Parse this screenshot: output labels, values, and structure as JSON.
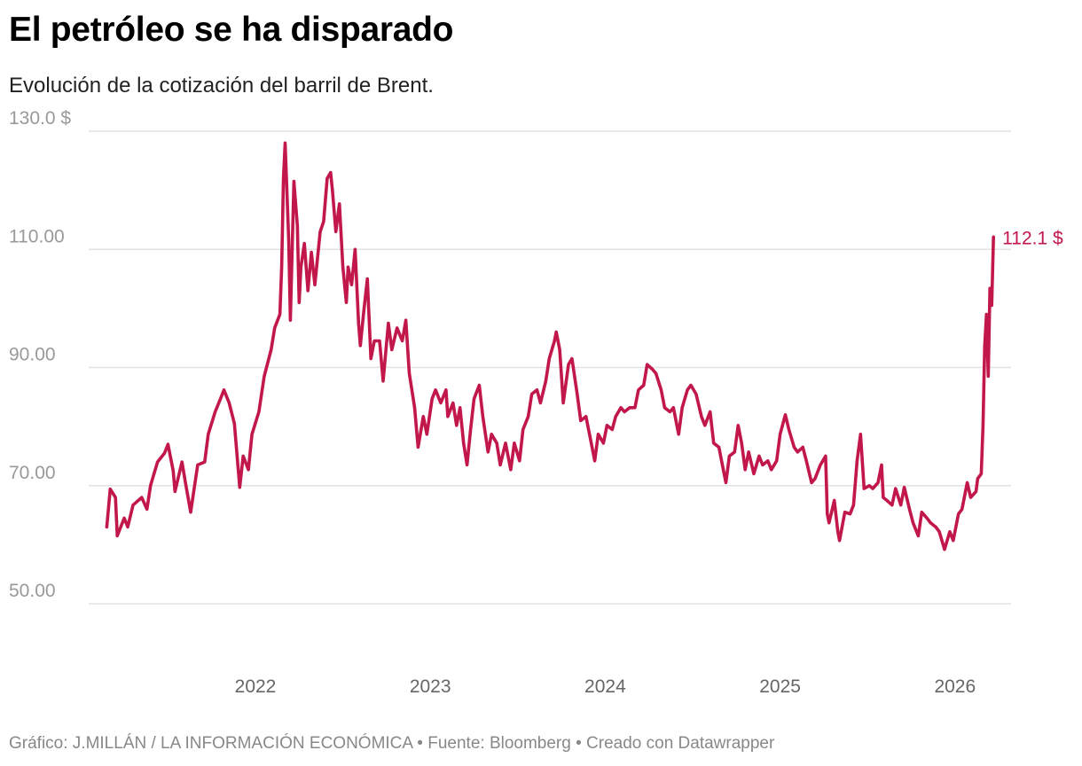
{
  "title": "El petróleo se ha disparado",
  "subtitle": "Evolución de la cotización del barril de Brent.",
  "footer": "Gráfico: J.MILLÁN / LA INFORMACIÓN ECONÓMICA • Fuente: Bloomberg • Creado con Datawrapper",
  "colors": {
    "line": "#c2174a",
    "grid": "#e3e3e3"
  },
  "chart_data": {
    "type": "line",
    "title": "El petróleo se ha disparado",
    "subtitle": "Evolución de la cotización del barril de Brent.",
    "ylim": [
      50,
      130
    ],
    "xlim": [
      2021.15,
      2026.22
    ],
    "grid": true,
    "y_ticks": [
      130,
      110,
      90,
      70,
      50
    ],
    "y_tick_labels": [
      "130.0 $",
      "110.00",
      "90.00",
      "70.00",
      "50.00"
    ],
    "x_ticks": [
      2022,
      2023,
      2024,
      2025,
      2026
    ],
    "x_tick_labels": [
      "2022",
      "2023",
      "2024",
      "2025",
      "2026"
    ],
    "end_label": "112.1 $",
    "x": [
      2021.15,
      2021.17,
      2021.2,
      2021.21,
      2021.25,
      2021.27,
      2021.3,
      2021.35,
      2021.38,
      2021.4,
      2021.44,
      2021.48,
      2021.5,
      2021.53,
      2021.54,
      2021.58,
      2021.6,
      2021.63,
      2021.67,
      2021.71,
      2021.73,
      2021.77,
      2021.8,
      2021.82,
      2021.85,
      2021.88,
      2021.91,
      2021.93,
      2021.96,
      2021.98,
      2022.02,
      2022.05,
      2022.09,
      2022.11,
      2022.14,
      2022.15,
      2022.16,
      2022.17,
      2022.19,
      2022.2,
      2022.22,
      2022.24,
      2022.25,
      2022.26,
      2022.28,
      2022.3,
      2022.32,
      2022.34,
      2022.37,
      2022.39,
      2022.41,
      2022.43,
      2022.44,
      2022.46,
      2022.48,
      2022.5,
      2022.52,
      2022.53,
      2022.55,
      2022.57,
      2022.59,
      2022.6,
      2022.62,
      2022.64,
      2022.66,
      2022.68,
      2022.71,
      2022.73,
      2022.76,
      2022.78,
      2022.81,
      2022.84,
      2022.86,
      2022.88,
      2022.91,
      2022.93,
      2022.96,
      2022.98,
      2023.01,
      2023.03,
      2023.06,
      2023.09,
      2023.1,
      2023.13,
      2023.15,
      2023.17,
      2023.19,
      2023.21,
      2023.23,
      2023.25,
      2023.28,
      2023.3,
      2023.33,
      2023.35,
      2023.38,
      2023.4,
      2023.43,
      2023.46,
      2023.48,
      2023.51,
      2023.53,
      2023.56,
      2023.58,
      2023.61,
      2023.63,
      2023.66,
      2023.68,
      2023.71,
      2023.72,
      2023.74,
      2023.76,
      2023.79,
      2023.81,
      2023.84,
      2023.86,
      2023.89,
      2023.91,
      2023.94,
      2023.96,
      2023.99,
      2024.01,
      2024.04,
      2024.06,
      2024.09,
      2024.11,
      2024.14,
      2024.17,
      2024.19,
      2024.22,
      2024.24,
      2024.27,
      2024.29,
      2024.32,
      2024.34,
      2024.37,
      2024.39,
      2024.42,
      2024.44,
      2024.47,
      2024.49,
      2024.52,
      2024.55,
      2024.57,
      2024.6,
      2024.62,
      2024.65,
      2024.67,
      2024.69,
      2024.71,
      2024.74,
      2024.76,
      2024.78,
      2024.8,
      2024.82,
      2024.85,
      2024.88,
      2024.9,
      2024.93,
      2024.95,
      2024.98,
      2025.0,
      2025.03,
      2025.05,
      2025.08,
      2025.1,
      2025.13,
      2025.15,
      2025.18,
      2025.2,
      2025.23,
      2025.26,
      2025.27,
      2025.28,
      2025.31,
      2025.33,
      2025.34,
      2025.37,
      2025.4,
      2025.42,
      2025.44,
      2025.46,
      2025.48,
      2025.51,
      2025.53,
      2025.56,
      2025.58,
      2025.59,
      2025.61,
      2025.64,
      2025.66,
      2025.69,
      2025.71,
      2025.74,
      2025.76,
      2025.79,
      2025.81,
      2025.84,
      2025.86,
      2025.89,
      2025.91,
      2025.94,
      2025.97,
      2025.99,
      2026.02,
      2026.04,
      2026.07,
      2026.09,
      2026.12,
      2026.13,
      2026.15,
      2026.16,
      2026.17,
      2026.18,
      2026.19,
      2026.2,
      2026.21,
      2026.22
    ],
    "y": [
      63,
      69.4,
      68,
      61.5,
      64.5,
      63,
      66.7,
      68,
      66,
      70,
      74,
      75.5,
      77,
      72.5,
      69,
      74,
      70.5,
      65.5,
      73.5,
      74,
      78.7,
      82.5,
      84.7,
      86.2,
      84,
      80.5,
      69.7,
      75,
      72.7,
      78.7,
      82.5,
      88.5,
      93,
      96.7,
      99,
      107,
      122,
      128,
      111.7,
      98,
      121.5,
      114,
      101,
      107,
      111,
      103,
      109.5,
      104,
      113,
      114.7,
      122,
      123,
      120,
      113,
      117.7,
      107,
      101,
      107,
      104,
      110,
      97.5,
      93.7,
      99.7,
      105,
      91.5,
      94.5,
      94.5,
      87.7,
      97.5,
      93,
      96.7,
      94.5,
      98,
      89,
      83.2,
      76.5,
      81.7,
      78.7,
      84.7,
      86.2,
      84,
      86.2,
      81.7,
      84,
      80.2,
      83.2,
      77.2,
      73.5,
      79.5,
      84.7,
      87,
      81.7,
      75.7,
      78.7,
      77.2,
      73.5,
      77.2,
      72.7,
      77.2,
      74.2,
      79.5,
      81.7,
      85.5,
      86.2,
      84,
      87.7,
      91.5,
      94.5,
      96,
      93,
      84,
      90.5,
      91.5,
      85.5,
      81,
      81.7,
      78.7,
      74.2,
      78.7,
      77.2,
      80.2,
      79.5,
      81.7,
      83.2,
      82.5,
      83.2,
      83.2,
      86.2,
      87,
      90.5,
      89.7,
      89,
      86.2,
      83.2,
      82.5,
      83.2,
      78.7,
      83.2,
      86.2,
      87,
      85.5,
      81.7,
      80.2,
      82.5,
      77.2,
      76.5,
      73.5,
      70.5,
      75,
      75.7,
      80.2,
      77.2,
      72.7,
      75.7,
      72,
      75,
      73.5,
      74.2,
      72.7,
      74.2,
      78.7,
      82,
      79.5,
      76.5,
      75.7,
      76.5,
      74.2,
      70.5,
      71.2,
      73.5,
      75,
      65.2,
      63.7,
      67.5,
      62.2,
      60.7,
      65.5,
      65.2,
      66.7,
      74.2,
      78.7,
      69.5,
      70,
      69.5,
      70.5,
      73.5,
      68,
      67.5,
      66.7,
      69.5,
      66.7,
      69.7,
      66,
      63.7,
      61.5,
      65.5,
      64.5,
      63.7,
      63,
      62.2,
      59.2,
      62.2,
      60.7,
      65.2,
      66,
      70.5,
      68,
      69,
      71.2,
      72,
      80.2,
      93.7,
      99,
      88.5,
      103.4,
      100.5,
      112.1
    ]
  }
}
